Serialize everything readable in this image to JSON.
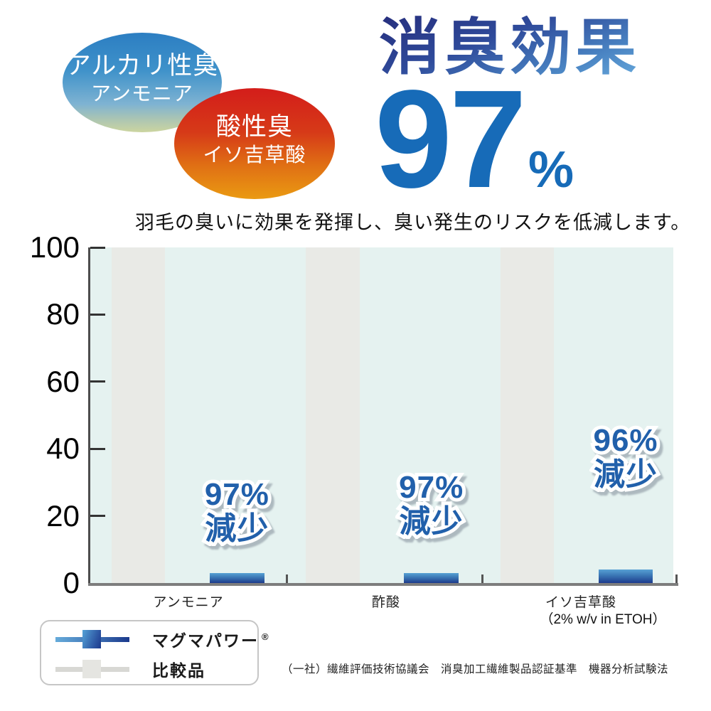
{
  "badges": {
    "alkaline": {
      "title": "アルカリ性臭",
      "subtitle": "アンモニア"
    },
    "acid": {
      "title": "酸性臭",
      "subtitle": "イソ吉草酸"
    }
  },
  "headline": {
    "title": "消臭効果",
    "value": "97",
    "unit": "%"
  },
  "subtitle": "羽毛の臭いに効果を発揮し、臭い発生のリスクを低減します。",
  "chart_data": {
    "type": "bar",
    "categories": [
      "アンモニア",
      "酢酸",
      "イソ吉草酸"
    ],
    "category_note": "（2% w/v in ETOH）",
    "category_note_index": 2,
    "series": [
      {
        "name": "マグマパワー®",
        "values": [
          3,
          3,
          4
        ]
      },
      {
        "name": "比較品",
        "values": [
          100,
          100,
          100
        ]
      }
    ],
    "reduction_labels": [
      {
        "percent": "97%",
        "word": "減少"
      },
      {
        "percent": "97%",
        "word": "減少"
      },
      {
        "percent": "96%",
        "word": "減少"
      }
    ],
    "ylim": [
      0,
      100
    ],
    "yticks": [
      0,
      20,
      40,
      60,
      80,
      100
    ],
    "grid": false,
    "legend_position": "below-left",
    "colors": {
      "plot_bg": "#e5f2f0",
      "comparison_bar": "#e9eae6",
      "main_bar_top": "#57a1d4",
      "main_bar_bottom": "#1c3a8c",
      "reduction_label": "#2160ab"
    }
  },
  "legend": {
    "items": [
      {
        "label": "マグマパワー",
        "mark": "®"
      },
      {
        "label": "比較品",
        "mark": ""
      }
    ]
  },
  "footnote": "（一社）繊維評価技術協議会　消臭加工繊維製品認証基準　機器分析試験法"
}
